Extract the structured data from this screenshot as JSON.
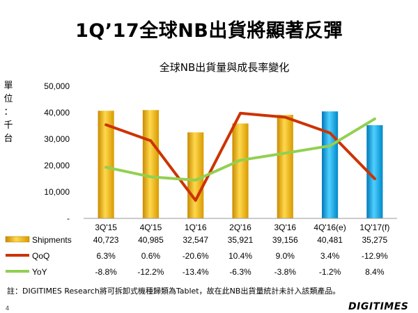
{
  "slide": {
    "title": "1Q’17全球NB出貨將顯著反彈",
    "footnote": "註：DIGITIMES Research將可拆卸式機種歸類為Tablet，故在此NB出貨量統計未計入該類產品。",
    "page_number": "4",
    "brand": "DIGITIMES"
  },
  "chart_data": {
    "type": "bar",
    "title": "全球NB出貨量與成長率變化",
    "ylabel": "單位：千台",
    "ylim": [
      0,
      50000
    ],
    "ytick_labels": [
      "50,000",
      "40,000",
      "30,000",
      "20,000",
      "10,000",
      "-"
    ],
    "categories": [
      "3Q'15",
      "4Q'15",
      "1Q'16",
      "2Q'16",
      "3Q'16",
      "4Q'16(e)",
      "1Q'17(f)"
    ],
    "series": [
      {
        "name": "Shipments",
        "kind": "bar",
        "color": "#FFC000",
        "highlight_color": "#00B0F0",
        "highlight_from_index": 5,
        "values": [
          40723,
          40985,
          32547,
          35921,
          39156,
          40481,
          35275
        ],
        "table_labels": [
          "40,723",
          "40,985",
          "32,547",
          "35,921",
          "39,156",
          "40,481",
          "35,275"
        ]
      },
      {
        "name": "QoQ",
        "kind": "line",
        "color": "#CC3300",
        "values": [
          6.3,
          0.6,
          -20.6,
          10.4,
          9.0,
          3.4,
          -12.9
        ],
        "table_labels": [
          "6.3%",
          "0.6%",
          "-20.6%",
          "10.4%",
          "9.0%",
          "3.4%",
          "-12.9%"
        ]
      },
      {
        "name": "YoY",
        "kind": "line",
        "color": "#92D050",
        "values": [
          -8.8,
          -12.2,
          -13.4,
          -6.3,
          -3.8,
          -1.2,
          8.4
        ],
        "table_labels": [
          "-8.8%",
          "-12.2%",
          "-13.4%",
          "-6.3%",
          "-3.8%",
          "-1.2%",
          "8.4%"
        ]
      }
    ],
    "grid": false,
    "legend": "data-table-left"
  }
}
